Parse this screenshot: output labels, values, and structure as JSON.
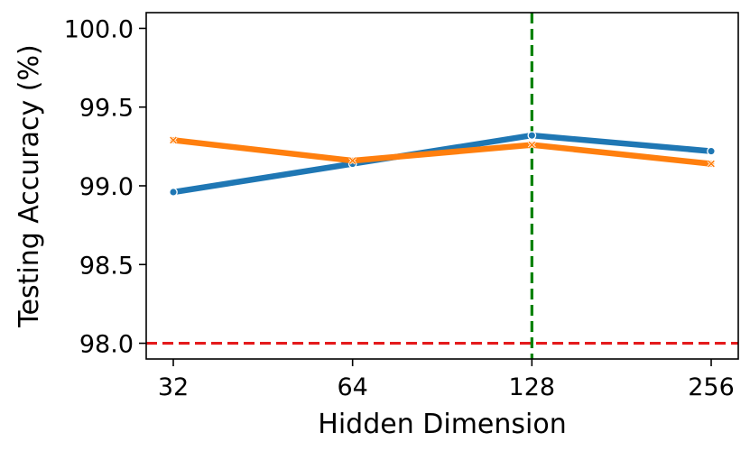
{
  "chart_data": {
    "type": "line",
    "title": "",
    "xlabel": "Hidden Dimension",
    "ylabel": "Testing Accuracy (%)",
    "x_scale": "log2",
    "x": [
      32,
      64,
      128,
      256
    ],
    "x_tick_labels": [
      "32",
      "64",
      "128",
      "256"
    ],
    "ylim": [
      97.9,
      100.1
    ],
    "y_ticks": [
      98.0,
      98.5,
      99.0,
      99.5,
      100.0
    ],
    "y_tick_labels": [
      "98.0",
      "98.5",
      "99.0",
      "99.5",
      "100.0"
    ],
    "grid": false,
    "legend": "none",
    "series": [
      {
        "values": [
          98.96,
          99.14,
          99.32,
          99.22
        ],
        "color": "#1f77b4",
        "marker": "circle"
      },
      {
        "values": [
          99.29,
          99.16,
          99.26,
          99.14
        ],
        "color": "#ff7f0e",
        "marker": "x"
      }
    ],
    "reference_lines": [
      {
        "orientation": "horizontal",
        "value": 98.0,
        "color": "#e41a1c",
        "style": "dashed"
      },
      {
        "orientation": "vertical",
        "value": 128,
        "color": "#008000",
        "style": "dashed"
      }
    ]
  }
}
